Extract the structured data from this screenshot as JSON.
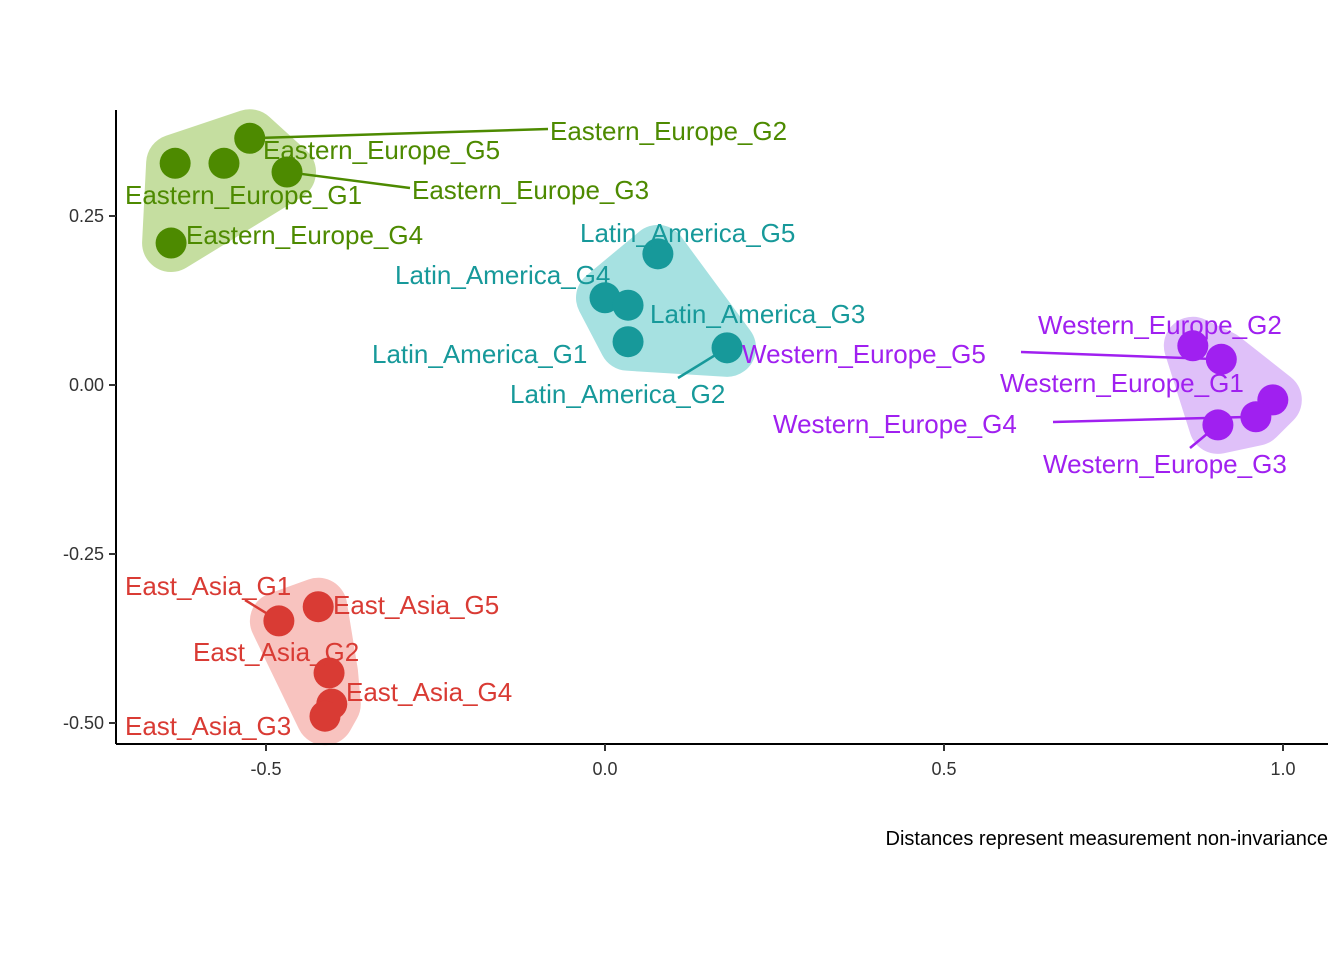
{
  "chart_data": {
    "type": "scatter",
    "title": "",
    "xlabel": "",
    "ylabel": "",
    "caption": "Distances represent measurement non-invariance",
    "xlim": [
      -0.72,
      1.07
    ],
    "ylim": [
      -0.535,
      0.405
    ],
    "x_ticks": [
      -0.5,
      0.0,
      0.5,
      1.0
    ],
    "x_tick_labels": [
      "-0.5",
      "0.0",
      "0.5",
      "1.0"
    ],
    "y_ticks": [
      0.25,
      0.0,
      -0.25,
      -0.5
    ],
    "y_tick_labels": [
      "0.25",
      "0.00",
      "-0.25",
      "-0.50"
    ],
    "grid": false,
    "legend": "none",
    "groups": [
      {
        "name": "Eastern_Europe",
        "color": "#4d8a00",
        "hull_color": "#c5dea0"
      },
      {
        "name": "Latin_America",
        "color": "#17999a",
        "hull_color": "#a6e1e1"
      },
      {
        "name": "Western_Europe",
        "color": "#a020f0",
        "hull_color": "#dfc0f9"
      },
      {
        "name": "East_Asia",
        "color": "#d93b34",
        "hull_color": "#f8c3bf"
      }
    ],
    "points": [
      {
        "label": "Eastern_Europe_G1",
        "group": "Eastern_Europe",
        "x": -0.634,
        "y": 0.328
      },
      {
        "label": "Eastern_Europe_G5",
        "group": "Eastern_Europe",
        "x": -0.562,
        "y": 0.328
      },
      {
        "label": "Eastern_Europe_G2",
        "group": "Eastern_Europe",
        "x": -0.524,
        "y": 0.365
      },
      {
        "label": "Eastern_Europe_G3",
        "group": "Eastern_Europe",
        "x": -0.469,
        "y": 0.315
      },
      {
        "label": "Eastern_Europe_G4",
        "group": "Eastern_Europe",
        "x": -0.64,
        "y": 0.21
      },
      {
        "label": "Latin_America_G5",
        "group": "Latin_America",
        "x": 0.078,
        "y": 0.194
      },
      {
        "label": "Latin_America_G4",
        "group": "Latin_America",
        "x": 0.0,
        "y": 0.129
      },
      {
        "label": "Latin_America_G3",
        "group": "Latin_America",
        "x": 0.034,
        "y": 0.118
      },
      {
        "label": "Latin_America_G1",
        "group": "Latin_America",
        "x": 0.034,
        "y": 0.064
      },
      {
        "label": "Latin_America_G2",
        "group": "Latin_America",
        "x": 0.18,
        "y": 0.055
      },
      {
        "label": "Western_Europe_G2",
        "group": "Western_Europe",
        "x": 0.867,
        "y": 0.058
      },
      {
        "label": "Western_Europe_G5",
        "group": "Western_Europe",
        "x": 0.909,
        "y": 0.038
      },
      {
        "label": "Western_Europe_G1",
        "group": "Western_Europe",
        "x": 0.985,
        "y": -0.022
      },
      {
        "label": "Western_Europe_G4",
        "group": "Western_Europe",
        "x": 0.96,
        "y": -0.047
      },
      {
        "label": "Western_Europe_G3",
        "group": "Western_Europe",
        "x": 0.904,
        "y": -0.059
      },
      {
        "label": "East_Asia_G1",
        "group": "East_Asia",
        "x": -0.481,
        "y": -0.349
      },
      {
        "label": "East_Asia_G5",
        "group": "East_Asia",
        "x": -0.423,
        "y": -0.328
      },
      {
        "label": "East_Asia_G2",
        "group": "East_Asia",
        "x": -0.407,
        "y": -0.426
      },
      {
        "label": "East_Asia_G4",
        "group": "East_Asia",
        "x": -0.403,
        "y": -0.472
      },
      {
        "label": "East_Asia_G3",
        "group": "East_Asia",
        "x": -0.413,
        "y": -0.49
      }
    ]
  }
}
